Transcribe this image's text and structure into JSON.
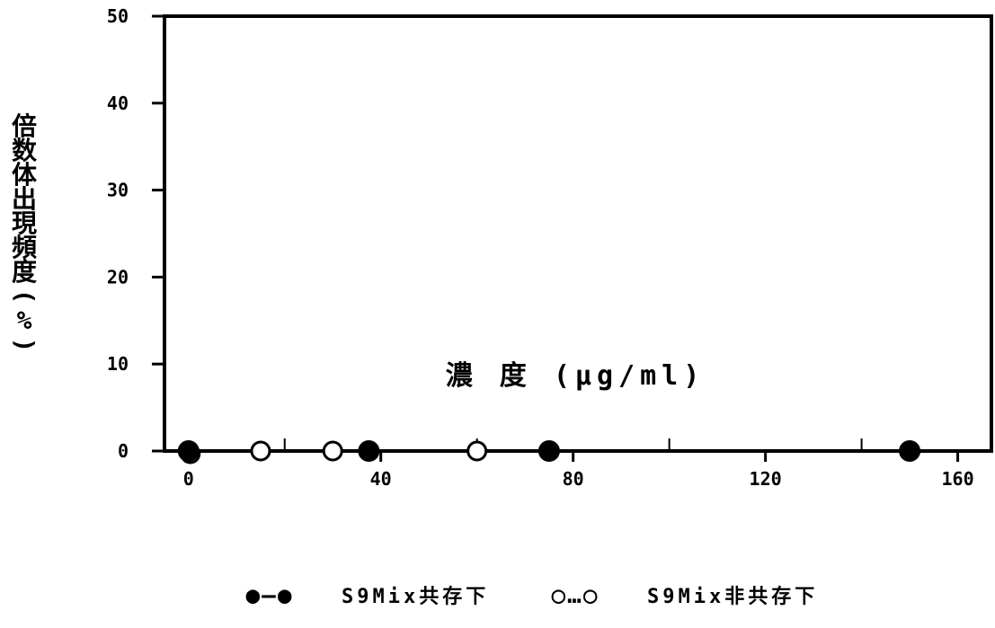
{
  "chart_data": {
    "type": "line",
    "title": "",
    "xlabel": "濃 度 (μg/ml)",
    "ylabel": "倍数体出現頻度(%)",
    "xlim": [
      -5,
      167
    ],
    "ylim": [
      0,
      50
    ],
    "xticks": [
      0,
      40,
      80,
      120,
      160
    ],
    "xtick_labels": [
      "0",
      "40",
      "80",
      "120",
      "160"
    ],
    "yticks": [
      0,
      10,
      20,
      30,
      40,
      50
    ],
    "ytick_labels": [
      "0",
      "10",
      "20",
      "30",
      "40",
      "50"
    ],
    "grid": false,
    "legend_position": "bottom",
    "series": [
      {
        "name": "S9Mix共存下",
        "marker": "filled-circle",
        "line": "solid",
        "legend_symbol": "●―●",
        "color": "#000000",
        "x": [
          0,
          37.5,
          75,
          150
        ],
        "y": [
          0,
          0,
          0,
          0
        ]
      },
      {
        "name": "S9Mix非共存下",
        "marker": "open-circle",
        "line": "dotted",
        "legend_symbol": "○…○",
        "color": "#000000",
        "x": [
          0,
          15,
          30,
          60
        ],
        "y": [
          0,
          0,
          0,
          0
        ]
      }
    ]
  }
}
